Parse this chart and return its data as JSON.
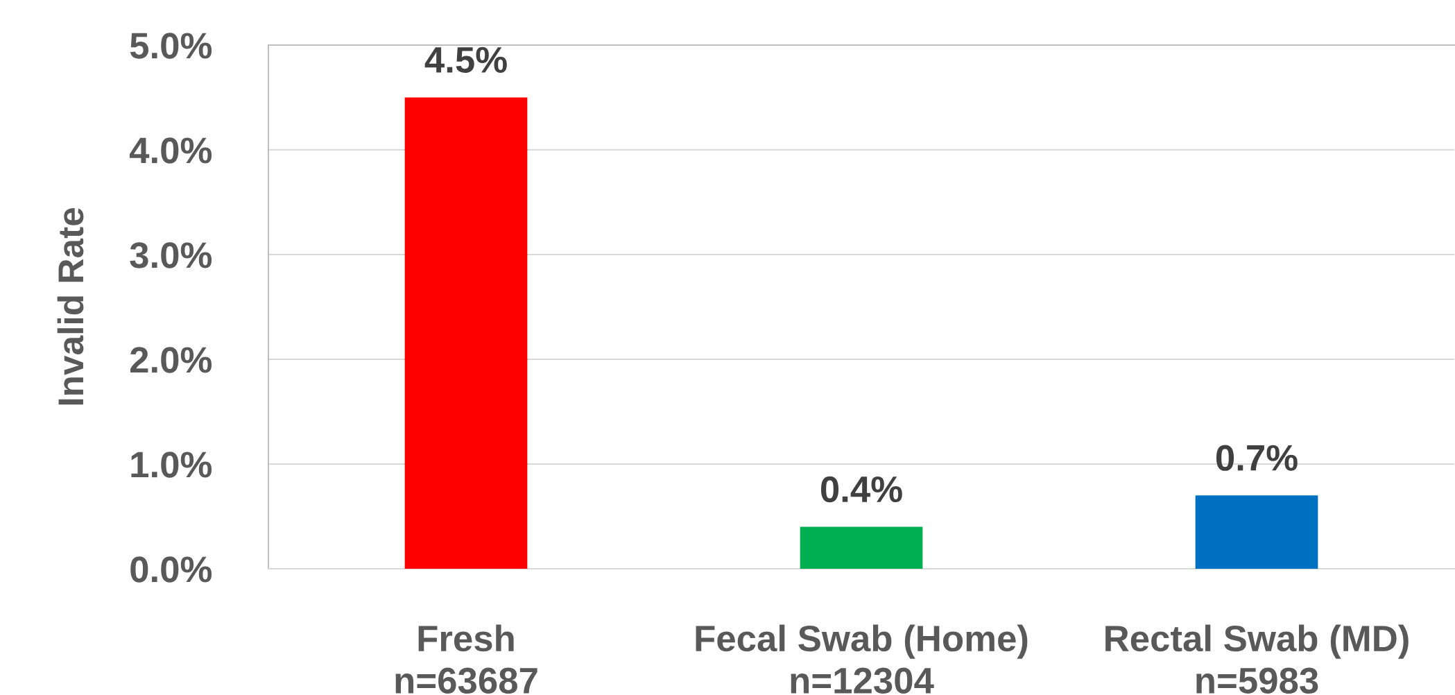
{
  "chart_data": {
    "type": "bar",
    "ylabel": "Invalid Rate",
    "categories": [
      "Fresh\nn=63687",
      "Fecal Swab (Home)\nn=12304",
      "Rectal Swab (MD)\nn=5983"
    ],
    "values": [
      4.5,
      0.4,
      0.7
    ],
    "colors": [
      "#ff0000",
      "#00b050",
      "#0070c0"
    ],
    "value_labels": [
      "4.5%",
      "0.4%",
      "0.7%"
    ],
    "ylim": [
      0,
      5
    ],
    "yticks": [
      {
        "value": 0,
        "label": "0.0%"
      },
      {
        "value": 1,
        "label": "1.0%"
      },
      {
        "value": 2,
        "label": "2.0%"
      },
      {
        "value": 3,
        "label": "3.0%"
      },
      {
        "value": 4,
        "label": "4.0%"
      },
      {
        "value": 5,
        "label": "5.0%"
      }
    ],
    "grid": "y"
  }
}
